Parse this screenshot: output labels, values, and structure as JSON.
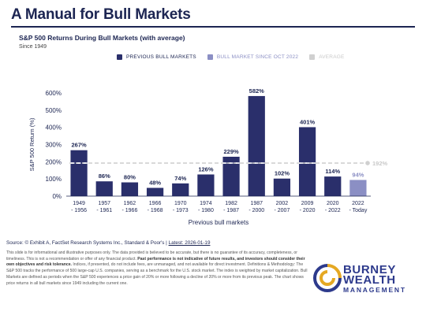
{
  "header": {
    "title": "A Manual for Bull Markets",
    "subtitle": "S&P 500 Returns During Bull Markets (with average)",
    "since": "Since 1949"
  },
  "legend": [
    {
      "label": "PREVIOUS BULL MARKETS",
      "color": "#2a2f6b"
    },
    {
      "label": "BULL MARKET SINCE OCT 2022",
      "color": "#8b8fc4"
    },
    {
      "label": "AVERAGE",
      "color": "#d0d0d0"
    }
  ],
  "chart_data": {
    "type": "bar",
    "ylabel": "S&P 500 Return (%)",
    "xlabel": "Previous bull markets",
    "ylim": [
      0,
      600
    ],
    "yticks": [
      "0%",
      "100%",
      "200%",
      "300%",
      "400%",
      "500%",
      "600%"
    ],
    "categories": [
      [
        "1949",
        "- 1956"
      ],
      [
        "1957",
        "- 1961"
      ],
      [
        "1962",
        "- 1966"
      ],
      [
        "1966",
        "- 1968"
      ],
      [
        "1970",
        "- 1973"
      ],
      [
        "1974",
        "- 1980"
      ],
      [
        "1982",
        "- 1987"
      ],
      [
        "1987",
        "- 2000"
      ],
      [
        "2002",
        "- 2007"
      ],
      [
        "2009",
        "- 2020"
      ],
      [
        "2020",
        "- 2022"
      ],
      [
        "2022",
        "- Today"
      ]
    ],
    "values": [
      267,
      86,
      80,
      48,
      74,
      126,
      229,
      582,
      102,
      401,
      114,
      94
    ],
    "labels": [
      "267%",
      "86%",
      "80%",
      "48%",
      "74%",
      "126%",
      "229%",
      "582%",
      "102%",
      "401%",
      "114%",
      "94%"
    ],
    "current_index": 11,
    "average": 192,
    "average_label": "192%",
    "colors": {
      "previous": "#2a2f6b",
      "current": "#8b8fc4",
      "average": "#d0d0d0",
      "avg_in_bar": "#ffffff"
    }
  },
  "footer": {
    "source_prefix": "Source: © Exhibit A, FactSet Research Systems Inc., Standard & Poor's | ",
    "source_link": "Latest: 2026-01-19",
    "disclaimer_1": "This slide is for informational and illustrative purposes only. The data provided is believed to be accurate, but there is no guarantee of its accuracy, completeness, or timeliness. This is not a recommendation or offer of any financial product. ",
    "disclaimer_bold": "Past performance is not indicative of future results, and investors should consider their own objectives and risk tolerance.",
    "disclaimer_2": " Indices, if presented, do not include fees, are unmanaged, and not available for direct investment. Definitions & Methodology: The S&P 500 tracks the performance of 500 large-cap U.S. companies, serving as a benchmark for the U.S. stock market. The index is weighted by market capitalization. Bull Markets are defined as periods when the S&P 500 experiences a price gain of 20% or more following a decline of 20% or more from its previous peak. The chart shows price returns in all bull markets since 1949 including the current one."
  },
  "logo": {
    "line1": "BURNEY",
    "line2": "WEALTH",
    "line3": "MANAGEMENT"
  }
}
